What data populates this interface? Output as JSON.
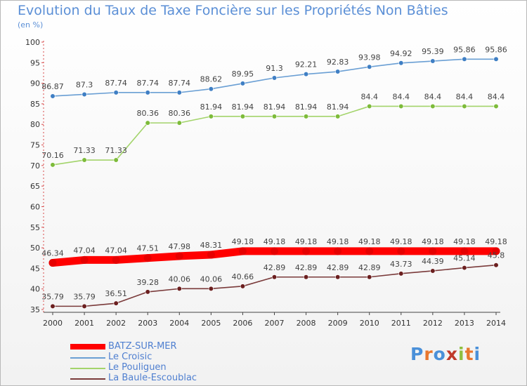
{
  "title": "Evolution du Taux de Taxe Foncière sur les Propriétés Non Bâties",
  "unit_label": "(en %)",
  "logo": {
    "text": "Proxiti",
    "letter_colors": [
      "#4a90d9",
      "#e8772e",
      "#4a90d9",
      "#c0392b",
      "#8fbf3f",
      "#e8772e",
      "#4a90d9"
    ]
  },
  "chart_data": {
    "type": "line",
    "title": "Evolution du Taux de Taxe Foncière sur les Propriétés Non Bâties",
    "ylabel": "(en %)",
    "xlabel": "",
    "ylim": [
      35,
      100
    ],
    "yticks": [
      "35",
      "40",
      "45",
      "50",
      "55",
      "60",
      "65",
      "70",
      "75",
      "80",
      "85",
      "90",
      "95",
      "100"
    ],
    "grid": false,
    "x": [
      "2000",
      "2001",
      "2002",
      "2003",
      "2004",
      "2005",
      "2006",
      "2007",
      "2008",
      "2009",
      "2010",
      "2011",
      "2012",
      "2013",
      "2014"
    ],
    "series": [
      {
        "name": "BATZ-SUR-MER",
        "color": "#ff0000",
        "marker": "#e60000",
        "bold": true,
        "values": [
          46.34,
          47.04,
          47.04,
          47.51,
          47.98,
          48.31,
          49.18,
          49.18,
          49.18,
          49.18,
          49.18,
          49.18,
          49.18,
          49.18,
          49.18
        ],
        "labels": [
          "46.34",
          "47.04",
          "47.04",
          "47.51",
          "47.98",
          "48.31",
          "49.18",
          "49.18",
          "49.18",
          "49.18",
          "49.18",
          "49.18",
          "49.18",
          "49.18",
          "49.18"
        ]
      },
      {
        "name": "Le Croisic",
        "color": "#6a9fd4",
        "marker": "#3f7fc4",
        "bold": false,
        "values": [
          86.87,
          87.3,
          87.74,
          87.74,
          87.74,
          88.62,
          89.95,
          91.3,
          92.21,
          92.83,
          93.98,
          94.92,
          95.39,
          95.86,
          95.86
        ],
        "labels": [
          "86.87",
          "87.3",
          "87.74",
          "87.74",
          "87.74",
          "88.62",
          "89.95",
          "91.3",
          "92.21",
          "92.83",
          "93.98",
          "94.92",
          "95.39",
          "95.86",
          "95.86"
        ]
      },
      {
        "name": "Le Pouliguen",
        "color": "#a3d46b",
        "marker": "#7dbb3a",
        "bold": false,
        "values": [
          70.16,
          71.33,
          71.33,
          80.36,
          80.36,
          81.94,
          81.94,
          81.94,
          81.94,
          81.94,
          84.4,
          84.4,
          84.4,
          84.4,
          84.4
        ],
        "labels": [
          "70.16",
          "71.33",
          "71.33",
          "80.36",
          "80.36",
          "81.94",
          "81.94",
          "81.94",
          "81.94",
          "81.94",
          "84.4",
          "84.4",
          "84.4",
          "84.4",
          "84.4"
        ]
      },
      {
        "name": "La Baule-Escoublac",
        "color": "#7a3a3a",
        "marker": "#6b1f1f",
        "bold": false,
        "values": [
          35.79,
          35.79,
          36.51,
          39.28,
          40.06,
          40.06,
          40.66,
          42.89,
          42.89,
          42.89,
          42.89,
          43.73,
          44.39,
          45.14,
          45.8
        ],
        "labels": [
          "35.79",
          "35.79",
          "36.51",
          "39.28",
          "40.06",
          "40.06",
          "40.66",
          "42.89",
          "42.89",
          "42.89",
          "42.89",
          "43.73",
          "44.39",
          "45.14",
          "45.8"
        ]
      }
    ]
  },
  "legend": [
    {
      "label": "BATZ-SUR-MER",
      "color": "#ff0000"
    },
    {
      "label": "Le Croisic",
      "color": "#6a9fd4"
    },
    {
      "label": "Le Pouliguen",
      "color": "#a3d46b"
    },
    {
      "label": "La Baule-Escoublac",
      "color": "#7a3a3a"
    }
  ]
}
